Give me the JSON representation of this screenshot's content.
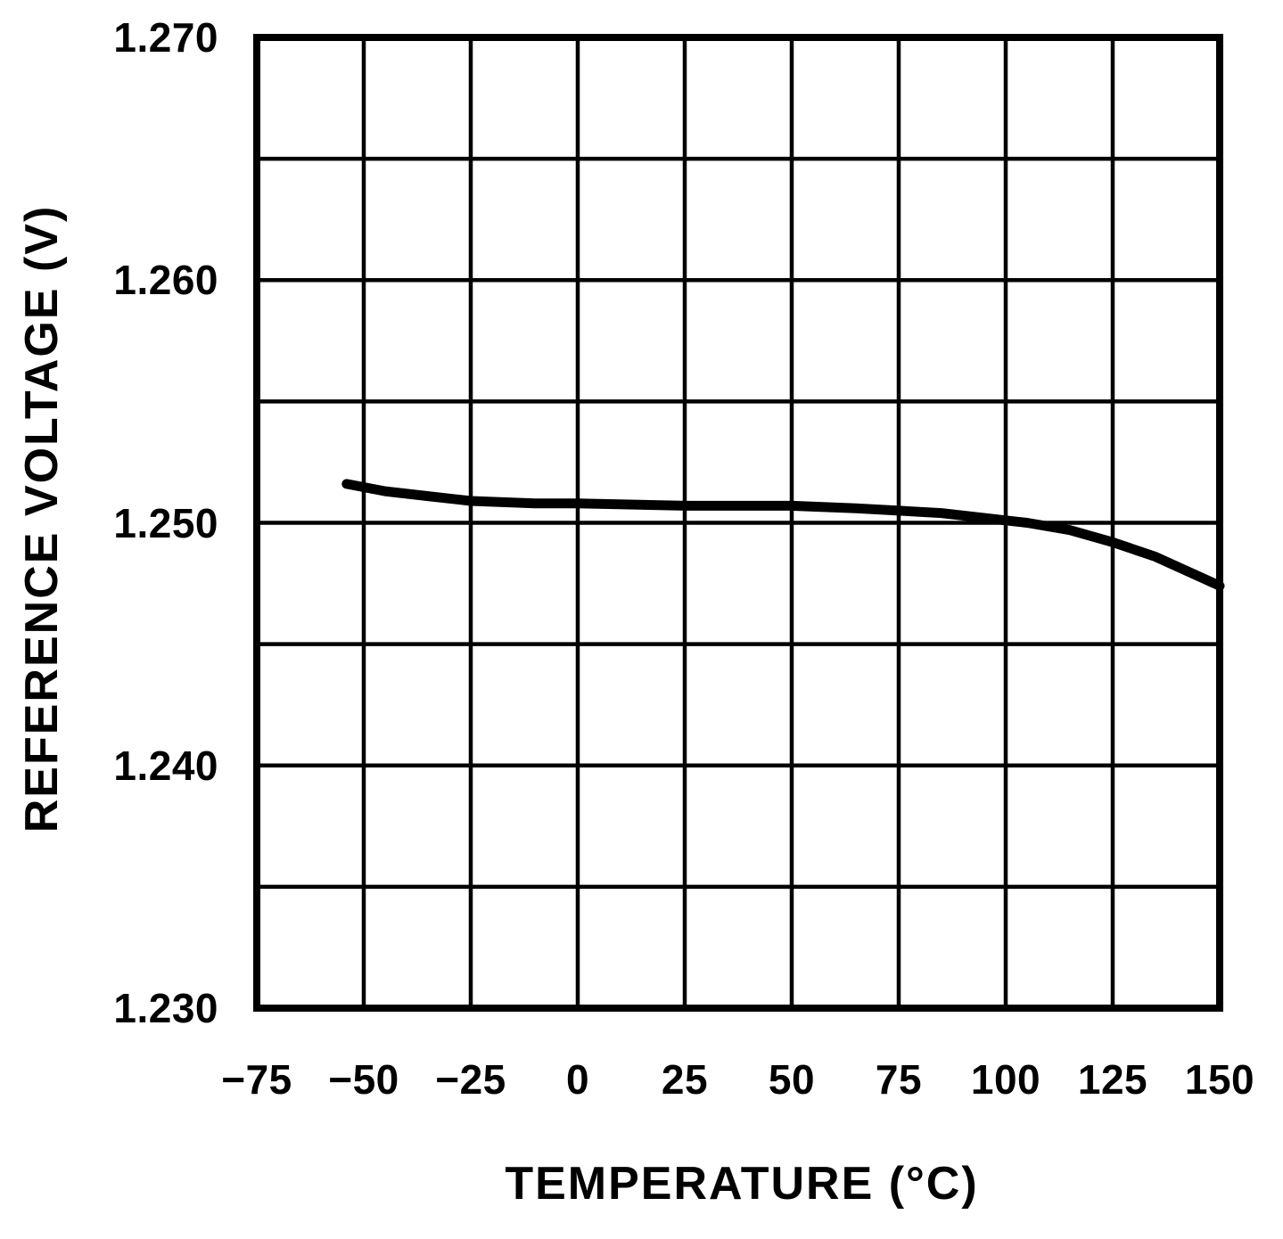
{
  "chart_data": {
    "type": "line",
    "title": "",
    "xlabel": "TEMPERATURE (°C)",
    "ylabel": "REFERENCE VOLTAGE (V)",
    "xlim": [
      -75,
      150
    ],
    "ylim": [
      1.23,
      1.27
    ],
    "x_grid_step": 25,
    "y_grid_step": 0.005,
    "grid": "on",
    "legend": "none",
    "x_tick_values": [
      -75,
      -50,
      -25,
      0,
      25,
      50,
      75,
      100,
      125,
      150
    ],
    "x_tick_labels": [
      "−75",
      "−50",
      "−25",
      "0",
      "25",
      "50",
      "75",
      "100",
      "125",
      "150"
    ],
    "y_tick_values": [
      1.27,
      1.26,
      1.25,
      1.24,
      1.23
    ],
    "y_tick_labels": [
      "1.270",
      "1.260",
      "1.250",
      "1.240",
      "1.230"
    ],
    "series": [
      {
        "name": "reference-voltage",
        "x": [
          -54,
          -45,
          -35,
          -25,
          -10,
          0,
          25,
          50,
          65,
          75,
          85,
          95,
          105,
          115,
          125,
          135,
          145,
          150
        ],
        "y": [
          1.2516,
          1.2513,
          1.2511,
          1.2509,
          1.2508,
          1.2508,
          1.2507,
          1.2507,
          1.2506,
          1.2505,
          1.2504,
          1.2502,
          1.25,
          1.2497,
          1.2492,
          1.2486,
          1.2478,
          1.2474
        ]
      }
    ],
    "line_color": "#000000",
    "line_width": 11
  }
}
